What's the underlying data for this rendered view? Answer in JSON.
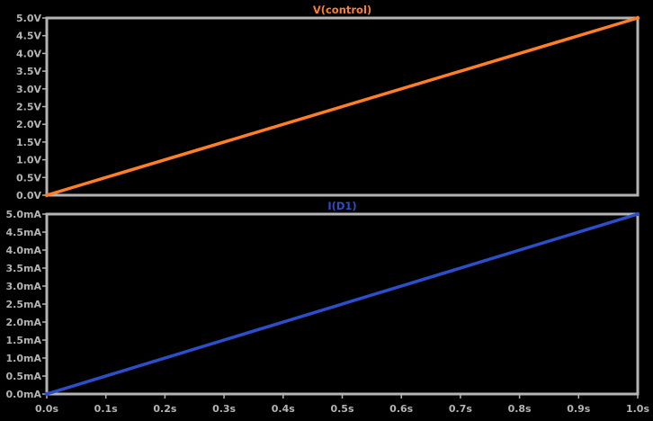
{
  "chart_data": [
    {
      "type": "line",
      "title": "V(control)",
      "title_color": "#ff7f27",
      "series": [
        {
          "name": "V(control)",
          "color": "#ff7f27",
          "x": [
            0.0,
            1.0
          ],
          "y": [
            0.0,
            5.0
          ]
        }
      ],
      "xlim": [
        0.0,
        1.0
      ],
      "ylim": [
        0.0,
        5.0
      ],
      "yticks": [
        0.0,
        0.5,
        1.0,
        1.5,
        2.0,
        2.5,
        3.0,
        3.5,
        4.0,
        4.5,
        5.0
      ],
      "ytick_labels": [
        "0.0V",
        "0.5V",
        "1.0V",
        "1.5V",
        "2.0V",
        "2.5V",
        "3.0V",
        "3.5V",
        "4.0V",
        "4.5V",
        "5.0V"
      ],
      "grid": false
    },
    {
      "type": "line",
      "title": "I(D1)",
      "title_color": "#2a4fc9",
      "series": [
        {
          "name": "I(D1)",
          "color": "#2a4fc9",
          "x": [
            0.0,
            1.0
          ],
          "y": [
            0.0,
            5.0
          ]
        }
      ],
      "xlim": [
        0.0,
        1.0
      ],
      "ylim": [
        0.0,
        5.0
      ],
      "yticks": [
        0.0,
        0.5,
        1.0,
        1.5,
        2.0,
        2.5,
        3.0,
        3.5,
        4.0,
        4.5,
        5.0
      ],
      "ytick_labels": [
        "0.0mA",
        "0.5mA",
        "1.0mA",
        "1.5mA",
        "2.0mA",
        "2.5mA",
        "3.0mA",
        "3.5mA",
        "4.0mA",
        "4.5mA",
        "5.0mA"
      ],
      "xticks": [
        0.0,
        0.1,
        0.2,
        0.3,
        0.4,
        0.5,
        0.6,
        0.7,
        0.8,
        0.9,
        1.0
      ],
      "xtick_labels": [
        "0.0s",
        "0.1s",
        "0.2s",
        "0.3s",
        "0.4s",
        "0.5s",
        "0.6s",
        "0.7s",
        "0.8s",
        "0.9s",
        "1.0s"
      ],
      "grid": false
    }
  ],
  "colors": {
    "background": "#000000",
    "frame": "#b4b4b4",
    "tick_text": "#b4b4b4"
  }
}
